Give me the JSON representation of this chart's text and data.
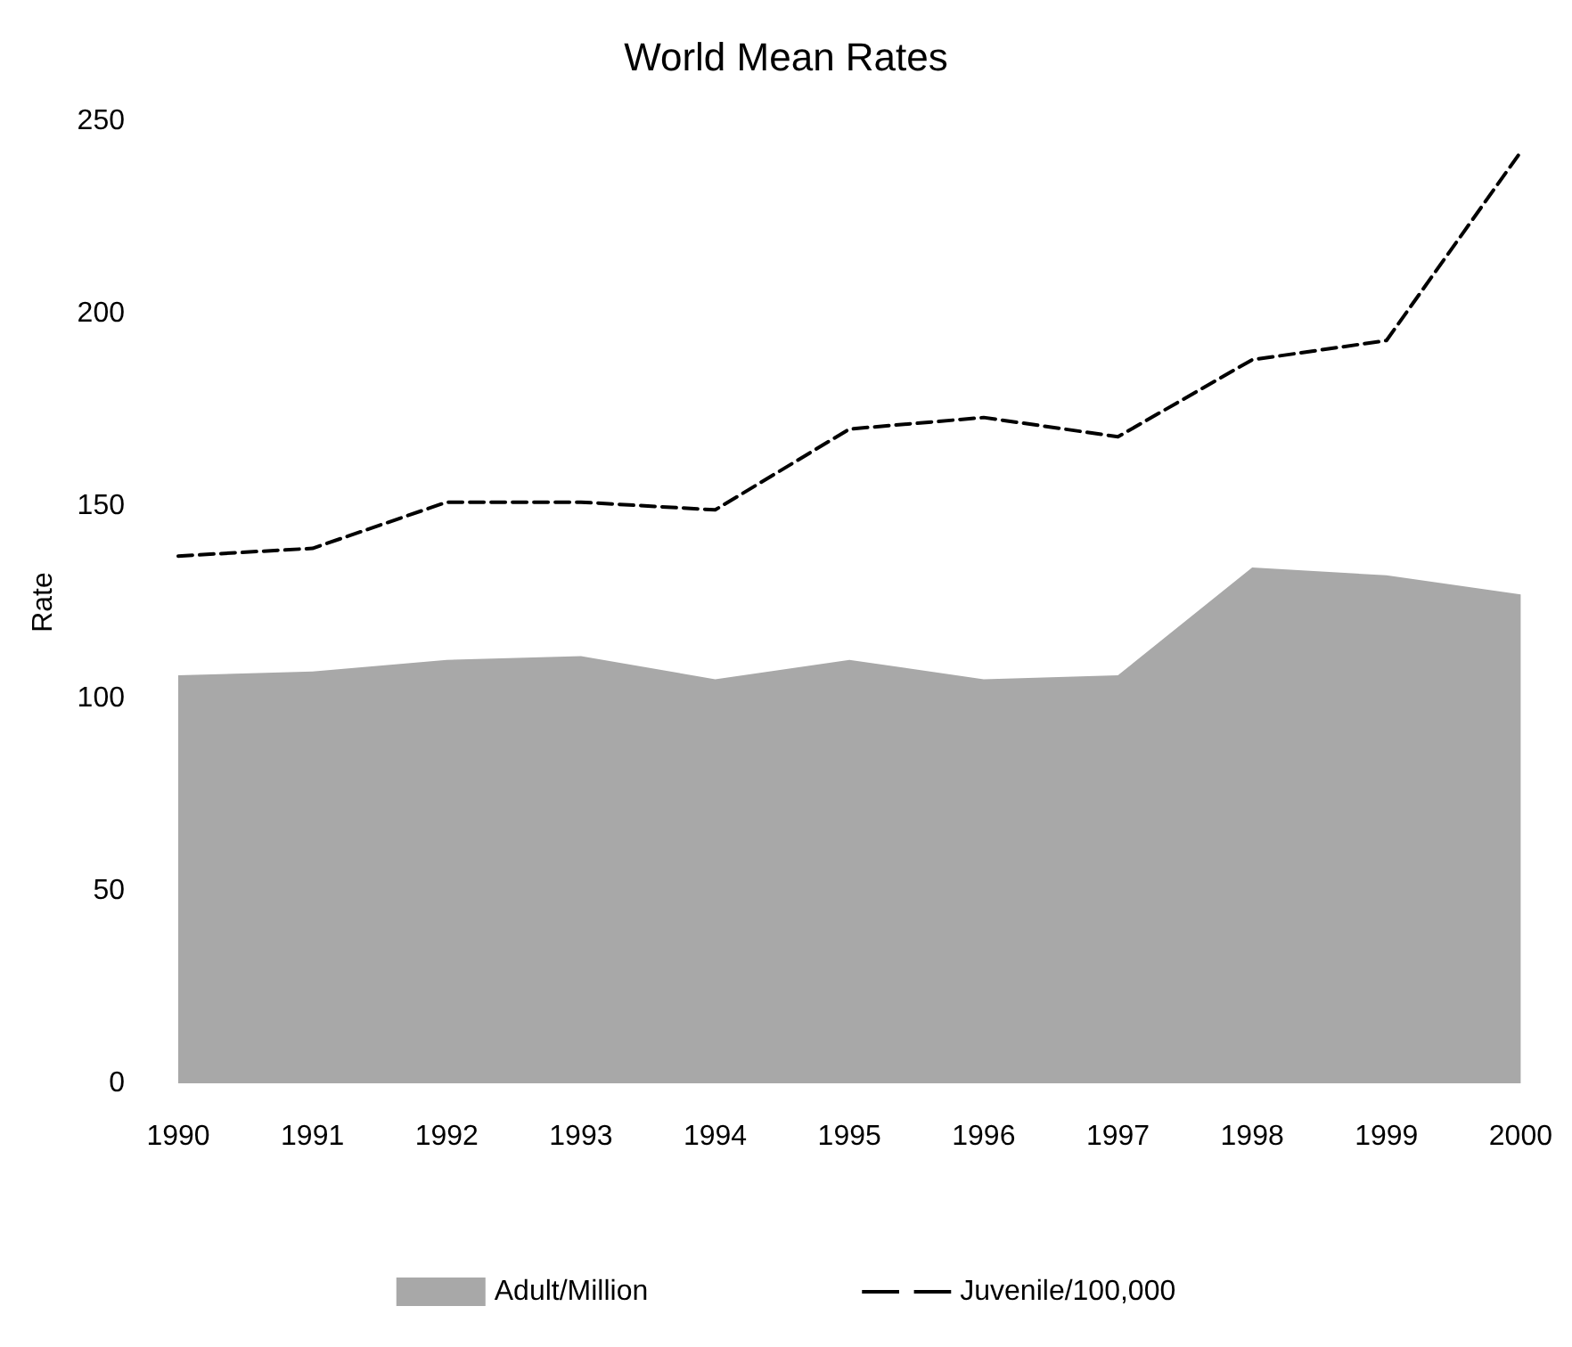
{
  "chart_data": {
    "type": "area",
    "title": "World Mean Rates",
    "ylabel": "Rate",
    "x": [
      1990,
      1991,
      1992,
      1993,
      1994,
      1995,
      1996,
      1997,
      1998,
      1999,
      2000
    ],
    "series": [
      {
        "name": "Adult/Million",
        "color": "#a8a8a8",
        "values": [
          106,
          107,
          110,
          111,
          105,
          110,
          105,
          106,
          134,
          132,
          127
        ]
      },
      {
        "name": "Juvenile/100,000",
        "type": "line",
        "color": "#000000",
        "line_style": "dashed",
        "values": [
          137,
          139,
          151,
          151,
          149,
          170,
          173,
          168,
          188,
          193,
          242
        ]
      }
    ],
    "xlim": [
      1990,
      2000
    ],
    "xticks": [
      1990,
      1991,
      1992,
      1993,
      1994,
      1995,
      1996,
      1997,
      1998,
      1999,
      2000
    ],
    "ylim": [
      0,
      250
    ],
    "yticks": [
      0,
      50,
      100,
      150,
      200,
      250
    ],
    "grid": false,
    "legend": "bottom",
    "marker": "none"
  }
}
